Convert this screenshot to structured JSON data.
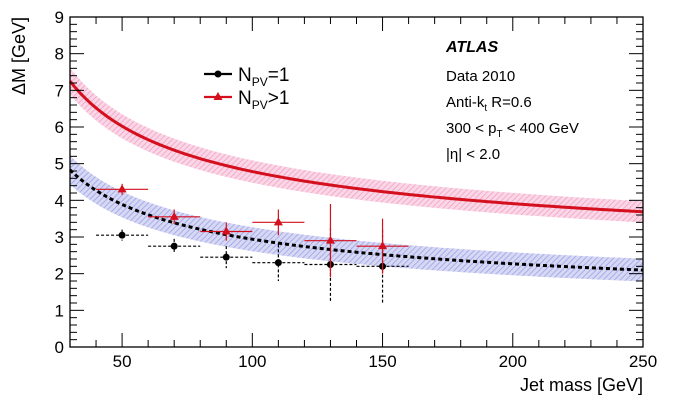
{
  "chart_data": {
    "type": "scatter",
    "xlabel": "Jet mass [GeV]",
    "ylabel": "ΔM [GeV]",
    "xlim": [
      30,
      250
    ],
    "ylim": [
      0,
      9
    ],
    "xticks": [
      "50",
      "100",
      "150",
      "200",
      "250"
    ],
    "yticks": [
      "0",
      "1",
      "2",
      "3",
      "4",
      "5",
      "6",
      "7",
      "8",
      "9"
    ],
    "legend_position": "top-left",
    "annotations": {
      "experiment": "ATLAS",
      "dataset": "Data 2010",
      "algo_main": "Anti-k",
      "algo_sub": "t",
      "algo_rest": " R=0.6",
      "pt_a": "300 < p",
      "pt_sub": "T",
      "pt_b": " < 400 GeV",
      "eta": "|η| < 2.0"
    },
    "series": [
      {
        "name_main": "N",
        "name_sub": "PV",
        "name_rest": "=1",
        "color": "#000000",
        "band_color": "#8a8fe0",
        "marker": "circle",
        "line_style": "dashed",
        "x": [
          50,
          70,
          90,
          110,
          130,
          150
        ],
        "y": [
          3.05,
          2.75,
          2.45,
          2.3,
          2.25,
          2.2
        ],
        "x_err": [
          10,
          10,
          10,
          10,
          10,
          10
        ],
        "y_err": [
          0.15,
          0.2,
          0.3,
          0.5,
          1.0,
          1.0
        ],
        "fit": {
          "a": 0.65,
          "b": 22.9
        },
        "band_halfwidth": 0.3
      },
      {
        "name_main": "N",
        "name_sub": "PV",
        "name_rest": ">1",
        "color": "#d4101f",
        "band_color": "#f08cb6",
        "marker": "triangle",
        "line_style": "solid",
        "x": [
          50,
          70,
          90,
          110,
          130,
          150
        ],
        "y": [
          4.3,
          3.55,
          3.15,
          3.4,
          2.9,
          2.75
        ],
        "x_err": [
          10,
          10,
          10,
          10,
          10,
          10
        ],
        "y_err": [
          0.15,
          0.2,
          0.25,
          0.35,
          1.0,
          0.75
        ],
        "fit": {
          "a": 1.8,
          "b": 29.85
        },
        "band_halfwidth": 0.28
      }
    ]
  }
}
